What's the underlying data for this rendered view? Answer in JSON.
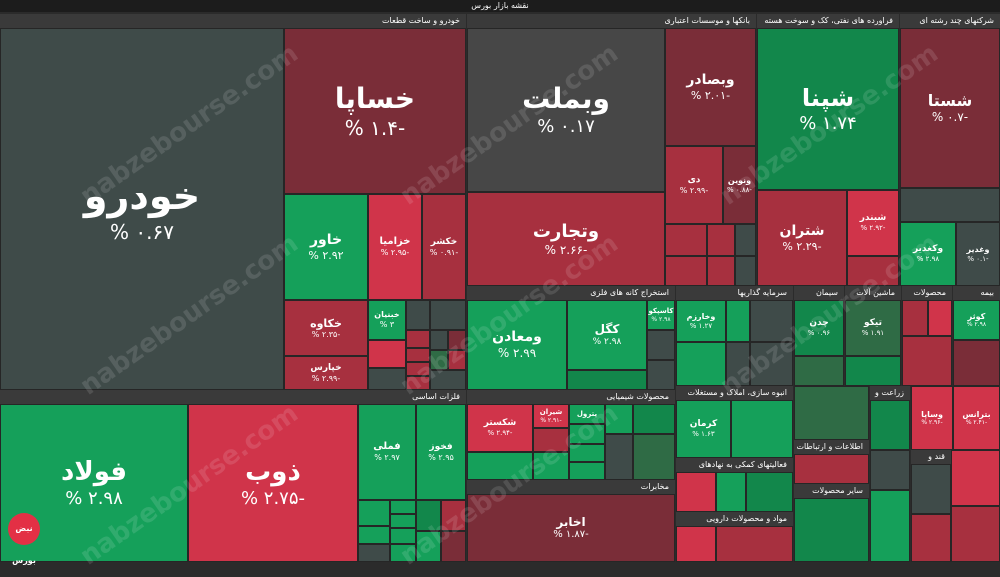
{
  "title": "نقشه بازار بورس",
  "watermark": "nabzebourse.com",
  "logo": "نبض بورس",
  "sectors": {
    "auto": "خودرو و ساخت قطعات",
    "banks": "بانکها و موسسات اعتباری",
    "oil": "فراورده های نفتی، کک و سوخت هسته",
    "multi": "شرکتهای چند رشته ای",
    "metals": "فلزات اساسی",
    "mining": "استخراج کانه های فلزی",
    "chem": "محصولات شیمیایی",
    "cement": "سیمان",
    "invest": "سرمایه گذاریها",
    "machine": "ماشین آلات",
    "products": "محصولات",
    "insurance": "بیمه",
    "telecom": "مخابرات",
    "building": "انبوه سازی، املاک و مستغلات",
    "it": "اطلاعات و ارتباطات",
    "pharma": "مواد و محصولات دارویی",
    "other_products": "سایر محصولات",
    "agri": "زراعت و",
    "sugar": "قند و",
    "finance": "فعالیتهای کمکی به نهادهای"
  },
  "tiles": {
    "khodro": {
      "name": "خودرو",
      "pct": "% ۰.۶۷"
    },
    "khasapa": {
      "name": "خساپا",
      "pct": "% ۱.۴-"
    },
    "khavar": {
      "name": "خاور",
      "pct": "% ۲.۹۲"
    },
    "khazamia": {
      "name": "خزامیا",
      "pct": "% ۲.۹۵-"
    },
    "khaktor": {
      "name": "خکشر",
      "pct": "% ۰.۹۱-"
    },
    "khakave": {
      "name": "خکاوه",
      "pct": "% ۲.۳۵-"
    },
    "khiaras": {
      "name": "خپارس",
      "pct": "% ۲.۹۹-"
    },
    "khanian": {
      "name": "خبنیان",
      "pct": "% ۳"
    },
    "vabmellat": {
      "name": "وبملت",
      "pct": "% ۰.۱۷"
    },
    "vabsader": {
      "name": "وبصادر",
      "pct": "% ۲.۰۱-"
    },
    "vatejarat": {
      "name": "وتجارت",
      "pct": "% ۲.۶۶-"
    },
    "day": {
      "name": "دی",
      "pct": "% ۲.۹۹-"
    },
    "vanovin": {
      "name": "ونوین",
      "pct": "% ۰.۸۸-"
    },
    "shepna": {
      "name": "شپنا",
      "pct": "% ۱.۷۴"
    },
    "shastra": {
      "name": "شتران",
      "pct": "% ۲.۲۹-"
    },
    "shabandar": {
      "name": "شبندر",
      "pct": "% ۲.۹۲-"
    },
    "shasta": {
      "name": "شستا",
      "pct": "% ۰.۷-"
    },
    "vaghadir": {
      "name": "وغدیر",
      "pct": "% ۰.۱-"
    },
    "vakhadir": {
      "name": "وکغدیر",
      "pct": "% ۲.۹۸"
    },
    "foolad": {
      "name": "فولاد",
      "pct": "% ۲.۹۸"
    },
    "zob": {
      "name": "ذوب",
      "pct": "% ۲.۷۵-"
    },
    "fameli": {
      "name": "فملی",
      "pct": "% ۲.۹۷"
    },
    "fakhooz": {
      "name": "فخوز",
      "pct": "% ۲.۹۵"
    },
    "vamaaden": {
      "name": "ومعادن",
      "pct": "% ۲.۹۹"
    },
    "kegol": {
      "name": "کگل",
      "pct": "% ۲.۹۸"
    },
    "katasco": {
      "name": "کاسپکو",
      "pct": "% ۲.۹۸"
    },
    "shekastar": {
      "name": "شکستر",
      "pct": "% ۲.۹۴-"
    },
    "shiran": {
      "name": "شیران",
      "pct": "% ۲.۹۱-"
    },
    "petrol": {
      "name": "پترول",
      "pct": ""
    },
    "akhaber": {
      "name": "اخابر",
      "pct": "% ۱.۸۷-"
    },
    "kerman": {
      "name": "کرمان",
      "pct": "% ۱.۶۳"
    },
    "tikou": {
      "name": "تیکو",
      "pct": "% ۱.۹۱"
    },
    "chadan": {
      "name": "چدن",
      "pct": "% ۰.۹۶"
    },
    "kowsar": {
      "name": "کوثر",
      "pct": "% ۲.۹۸"
    },
    "batrans": {
      "name": "بترانس",
      "pct": "% ۲.۴۱-"
    },
    "vasapa": {
      "name": "وساپا",
      "pct": "% ۲.۹۶-"
    },
    "vakharazm": {
      "name": "وخارزم",
      "pct": "% ۱.۲۷"
    }
  }
}
